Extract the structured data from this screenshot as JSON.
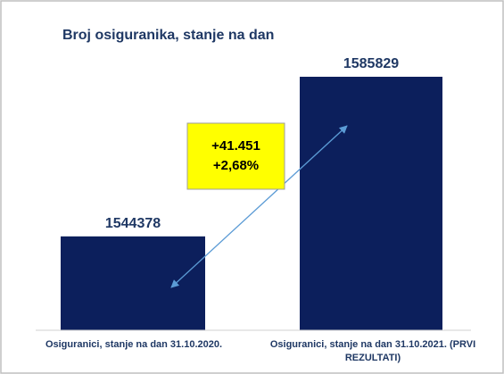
{
  "chart_data": {
    "type": "bar",
    "title": "Broj osiguranika, stanje na dan",
    "categories": [
      "Osiguranici, stanje na dan 31.10.2020.",
      "Osiguranici, stanje na dan 31.10.2021. (PRVI REZULTATI)"
    ],
    "values": [
      1544378,
      1585829
    ],
    "data_labels": [
      "1544378",
      "1585829"
    ],
    "annotation": {
      "lines": [
        "+41.451",
        "+2,68%"
      ],
      "background": "#ffff00",
      "arrow": "double-headed, from first bar to second bar"
    },
    "ylim": [
      1520000,
      1590000
    ],
    "xlabel": "",
    "ylabel": "",
    "grid": false,
    "legend": "none",
    "colors": {
      "bar": "#0c1f5c",
      "title": "#1f3864",
      "text": "#1f3864",
      "arrow": "#5b9bd5",
      "frame": "#bfbfbf"
    }
  }
}
